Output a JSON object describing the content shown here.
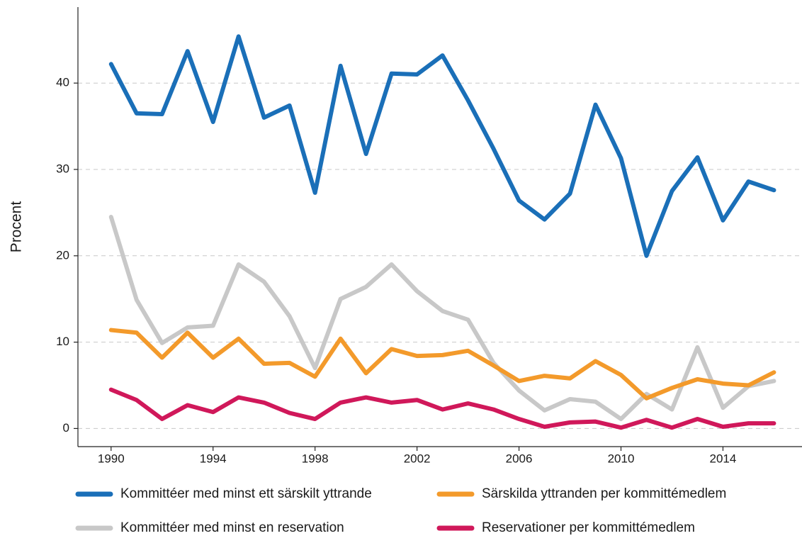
{
  "chart_data": {
    "type": "line",
    "y_label": "Procent",
    "x": [
      1990,
      1991,
      1992,
      1993,
      1994,
      1995,
      1996,
      1997,
      1998,
      1999,
      2000,
      2001,
      2002,
      2003,
      2004,
      2005,
      2006,
      2007,
      2008,
      2009,
      2010,
      2011,
      2012,
      2013,
      2014,
      2015,
      2016
    ],
    "series": [
      {
        "name": "Kommittéer med minst ett särskilt yttrande",
        "color": "#1a6fb8",
        "values": [
          42.2,
          36.5,
          36.4,
          43.7,
          35.5,
          45.4,
          36.0,
          37.4,
          27.3,
          42.0,
          31.8,
          41.1,
          41.0,
          43.2,
          38.0,
          32.4,
          26.4,
          24.2,
          27.2,
          37.5,
          31.3,
          20.0,
          27.5,
          31.4,
          24.1,
          28.6,
          27.6
        ]
      },
      {
        "name": "Särskilda yttranden per kommittémedlem",
        "color": "#f39a2b",
        "values": [
          11.4,
          11.1,
          8.2,
          11.1,
          8.2,
          10.4,
          7.5,
          7.6,
          6.0,
          10.4,
          6.4,
          9.2,
          8.4,
          8.5,
          9.0,
          7.3,
          5.5,
          6.1,
          5.8,
          7.8,
          6.2,
          3.5,
          4.7,
          5.7,
          5.2,
          5.0,
          6.5
        ]
      },
      {
        "name": "Kommittéer med minst en reservation",
        "color": "#c8c8c8",
        "values": [
          24.5,
          14.9,
          9.9,
          11.7,
          11.9,
          19.0,
          17.0,
          13.0,
          7.0,
          15.0,
          16.4,
          19.0,
          15.9,
          13.6,
          12.6,
          7.6,
          4.4,
          2.1,
          3.4,
          3.1,
          1.1,
          4.0,
          2.2,
          9.4,
          2.4,
          4.9,
          5.5
        ]
      },
      {
        "name": "Reservationer per kommittémedlem",
        "color": "#d0185a",
        "values": [
          4.5,
          3.3,
          1.1,
          2.7,
          1.9,
          3.6,
          3.0,
          1.8,
          1.1,
          3.0,
          3.6,
          3.0,
          3.3,
          2.2,
          2.9,
          2.2,
          1.1,
          0.2,
          0.7,
          0.8,
          0.1,
          1.0,
          0.1,
          1.1,
          0.2,
          0.6,
          0.6
        ]
      }
    ],
    "xlim": [
      1988.7,
      2017.1
    ],
    "xticks": [
      1990,
      1994,
      1998,
      2002,
      2006,
      2010,
      2014
    ],
    "ylim": [
      -2.1,
      48.8
    ],
    "yticks": [
      0,
      10,
      20,
      30,
      40
    ],
    "grid": true,
    "legend": "bottom"
  }
}
